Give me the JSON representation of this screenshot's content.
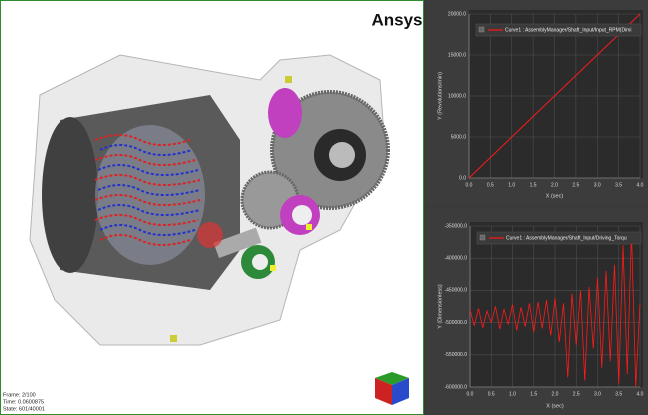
{
  "viewport": {
    "logo": "Ansys",
    "info": [
      "Frame: 2/100",
      "Time: 0.0600875",
      "State: 601/40001"
    ]
  },
  "chart_data": [
    {
      "type": "line",
      "xlabel": "X (sec)",
      "ylabel": "Y (Revolutions/min)",
      "x": [
        0,
        4
      ],
      "series": [
        {
          "name": "Curve1 : AssemblyManager/Shaft_Input/Input_RPM(Dimi",
          "color": "#ff1a1a",
          "values": [
            0,
            20000
          ]
        }
      ],
      "xlim": [
        0,
        4
      ],
      "ylim": [
        0,
        20000
      ],
      "xticks": [
        {
          "value": 0,
          "label": "0.0"
        },
        0.5,
        {
          "value": 1,
          "label": "1.0"
        },
        1.5,
        {
          "value": 2,
          "label": "2.0"
        },
        2.5,
        {
          "value": 3,
          "label": "3.0"
        },
        3.5,
        {
          "value": 4,
          "label": "4.0"
        }
      ],
      "yticks": [
        {
          "value": 0,
          "label": "0.0"
        },
        {
          "value": 5000,
          "label": "5000.0"
        },
        {
          "value": 10000,
          "label": "10000.0"
        },
        {
          "value": 15000,
          "label": "15000.0"
        },
        {
          "value": 20000,
          "label": "20000.0"
        }
      ],
      "grid": true
    },
    {
      "type": "line",
      "xlabel": "X (sec)",
      "ylabel": "Y (Dimensionless)",
      "x": [
        0,
        0.1,
        0.2,
        0.3,
        0.4,
        0.5,
        0.6,
        0.7,
        0.8,
        0.9,
        1,
        1.1,
        1.2,
        1.3,
        1.4,
        1.5,
        1.6,
        1.7,
        1.8,
        1.9,
        2,
        2.1,
        2.2,
        2.3,
        2.4,
        2.5,
        2.6,
        2.7,
        2.8,
        2.9,
        3,
        3.1,
        3.2,
        3.3,
        3.4,
        3.5,
        3.6,
        3.7,
        3.8,
        3.9,
        4
      ],
      "series": [
        {
          "name": "Curve1 : AssemblyManager/Shaft_Input/Driving_Torqu",
          "color": "#ff1a1a",
          "values": [
            -480000,
            -505000,
            -478000,
            -508000,
            -482000,
            -500000,
            -475000,
            -510000,
            -479000,
            -503000,
            -472000,
            -512000,
            -476000,
            -506000,
            -470000,
            -515000,
            -468000,
            -509000,
            -465000,
            -520000,
            -462000,
            -530000,
            -470000,
            -585000,
            -455000,
            -535000,
            -450000,
            -590000,
            -445000,
            -540000,
            -430000,
            -570000,
            -420000,
            -560000,
            -410000,
            -595000,
            -380000,
            -580000,
            -360000,
            -600000,
            -470000
          ]
        }
      ],
      "xlim": [
        0,
        4
      ],
      "ylim": [
        -600000,
        -350000
      ],
      "xticks": [
        {
          "value": 0,
          "label": "0.0"
        },
        0.5,
        {
          "value": 1,
          "label": "1.0"
        },
        1.5,
        {
          "value": 2,
          "label": "2.0"
        },
        2.5,
        {
          "value": 3,
          "label": "3.0"
        },
        3.5,
        {
          "value": 4,
          "label": "4.0"
        }
      ],
      "yticks": [
        {
          "value": -350000,
          "label": "-350000.0"
        },
        {
          "value": -400000,
          "label": "-400000.0"
        },
        {
          "value": -450000,
          "label": "-450000.0"
        },
        {
          "value": -500000,
          "label": "-500000.0"
        },
        {
          "value": -550000,
          "label": "-550000.0"
        },
        {
          "value": -600000,
          "label": "-600000.0"
        }
      ],
      "grid": true
    }
  ]
}
